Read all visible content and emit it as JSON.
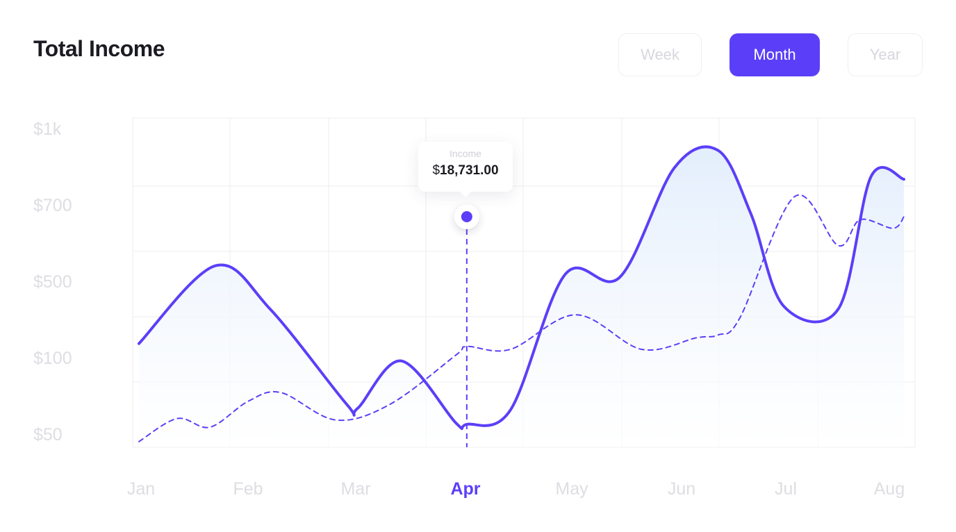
{
  "header": {
    "title": "Total Income"
  },
  "period_toggle": {
    "options": [
      "Week",
      "Month",
      "Year"
    ],
    "selected": "Month"
  },
  "tooltip": {
    "label": "Income",
    "currency": "$",
    "value": "18,731.00",
    "category": "Apr"
  },
  "colors": {
    "accent": "#5b3ff8",
    "area_top": "#e3eefc",
    "grid": "#f1f1f4",
    "tick": "#dddde3",
    "title": "#1b1b22"
  },
  "chart_data": {
    "type": "line",
    "title": "Total Income",
    "categories": [
      "Jan",
      "Feb",
      "Mar",
      "Apr",
      "May",
      "Jun",
      "Jul",
      "Aug"
    ],
    "y_tick_labels": [
      "$1k",
      "$700",
      "$500",
      "$100",
      "$50"
    ],
    "highlighted_category": "Apr",
    "grid": true,
    "area_fill_under_solid_series": true,
    "series": [
      {
        "style": "solid",
        "x": [
          0.0,
          0.7,
          1.2,
          1.9,
          2.0,
          2.4,
          2.9,
          3.0,
          3.4,
          3.9,
          4.4,
          4.9,
          5.3,
          5.6,
          5.9,
          6.4,
          6.7,
          7.0
        ],
        "y": [
          350,
          620,
          470,
          140,
          125,
          290,
          75,
          70,
          120,
          590,
          580,
          960,
          1020,
          800,
          480,
          470,
          930,
          920
        ]
      },
      {
        "style": "dashed",
        "x": [
          0.0,
          0.35,
          0.65,
          1.0,
          1.3,
          1.8,
          2.3,
          2.9,
          3.0,
          3.4,
          4.0,
          4.6,
          5.1,
          5.3,
          5.5,
          6.0,
          6.4,
          6.6,
          6.9,
          7.0
        ],
        "y": [
          10,
          90,
          60,
          150,
          180,
          85,
          140,
          310,
          340,
          330,
          450,
          330,
          370,
          380,
          440,
          860,
          690,
          780,
          750,
          790
        ]
      }
    ]
  }
}
